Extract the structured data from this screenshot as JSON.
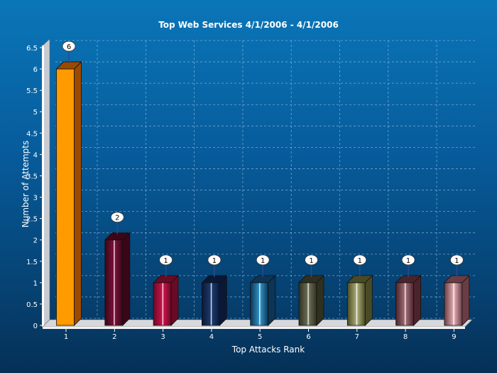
{
  "chart_data": {
    "type": "bar",
    "title": "Top Web Services 4/1/2006  - 4/1/2006",
    "xlabel": "Top Attacks Rank",
    "ylabel": "Number of Attempts",
    "categories": [
      "1",
      "2",
      "3",
      "4",
      "5",
      "6",
      "7",
      "8",
      "9"
    ],
    "values": [
      6,
      2,
      1,
      1,
      1,
      1,
      1,
      1,
      1
    ],
    "data_labels": [
      "6",
      "2",
      "1",
      "1",
      "1",
      "1",
      "1",
      "1",
      "1"
    ],
    "ylim": [
      0,
      6.5
    ],
    "yticks": [
      "0",
      "0.5",
      "1",
      "1.5",
      "2",
      "2.5",
      "3",
      "3.5",
      "4",
      "4.5",
      "5",
      "5.5",
      "6",
      "6.5"
    ],
    "grid": true,
    "bar_colors": [
      "#ff9a00",
      "#7a1038",
      "#c8124a",
      "#1c3a6c",
      "#2f8fc0",
      "#6b6e55",
      "#a6a874",
      "#9c6a72",
      "#d9a5ac"
    ],
    "bar_side_colors": [
      "#9c4a00",
      "#3a0618",
      "#6a0a24",
      "#0a1838",
      "#0c3558",
      "#2f3020",
      "#4a4a24",
      "#4a242c",
      "#6a3c44"
    ]
  }
}
